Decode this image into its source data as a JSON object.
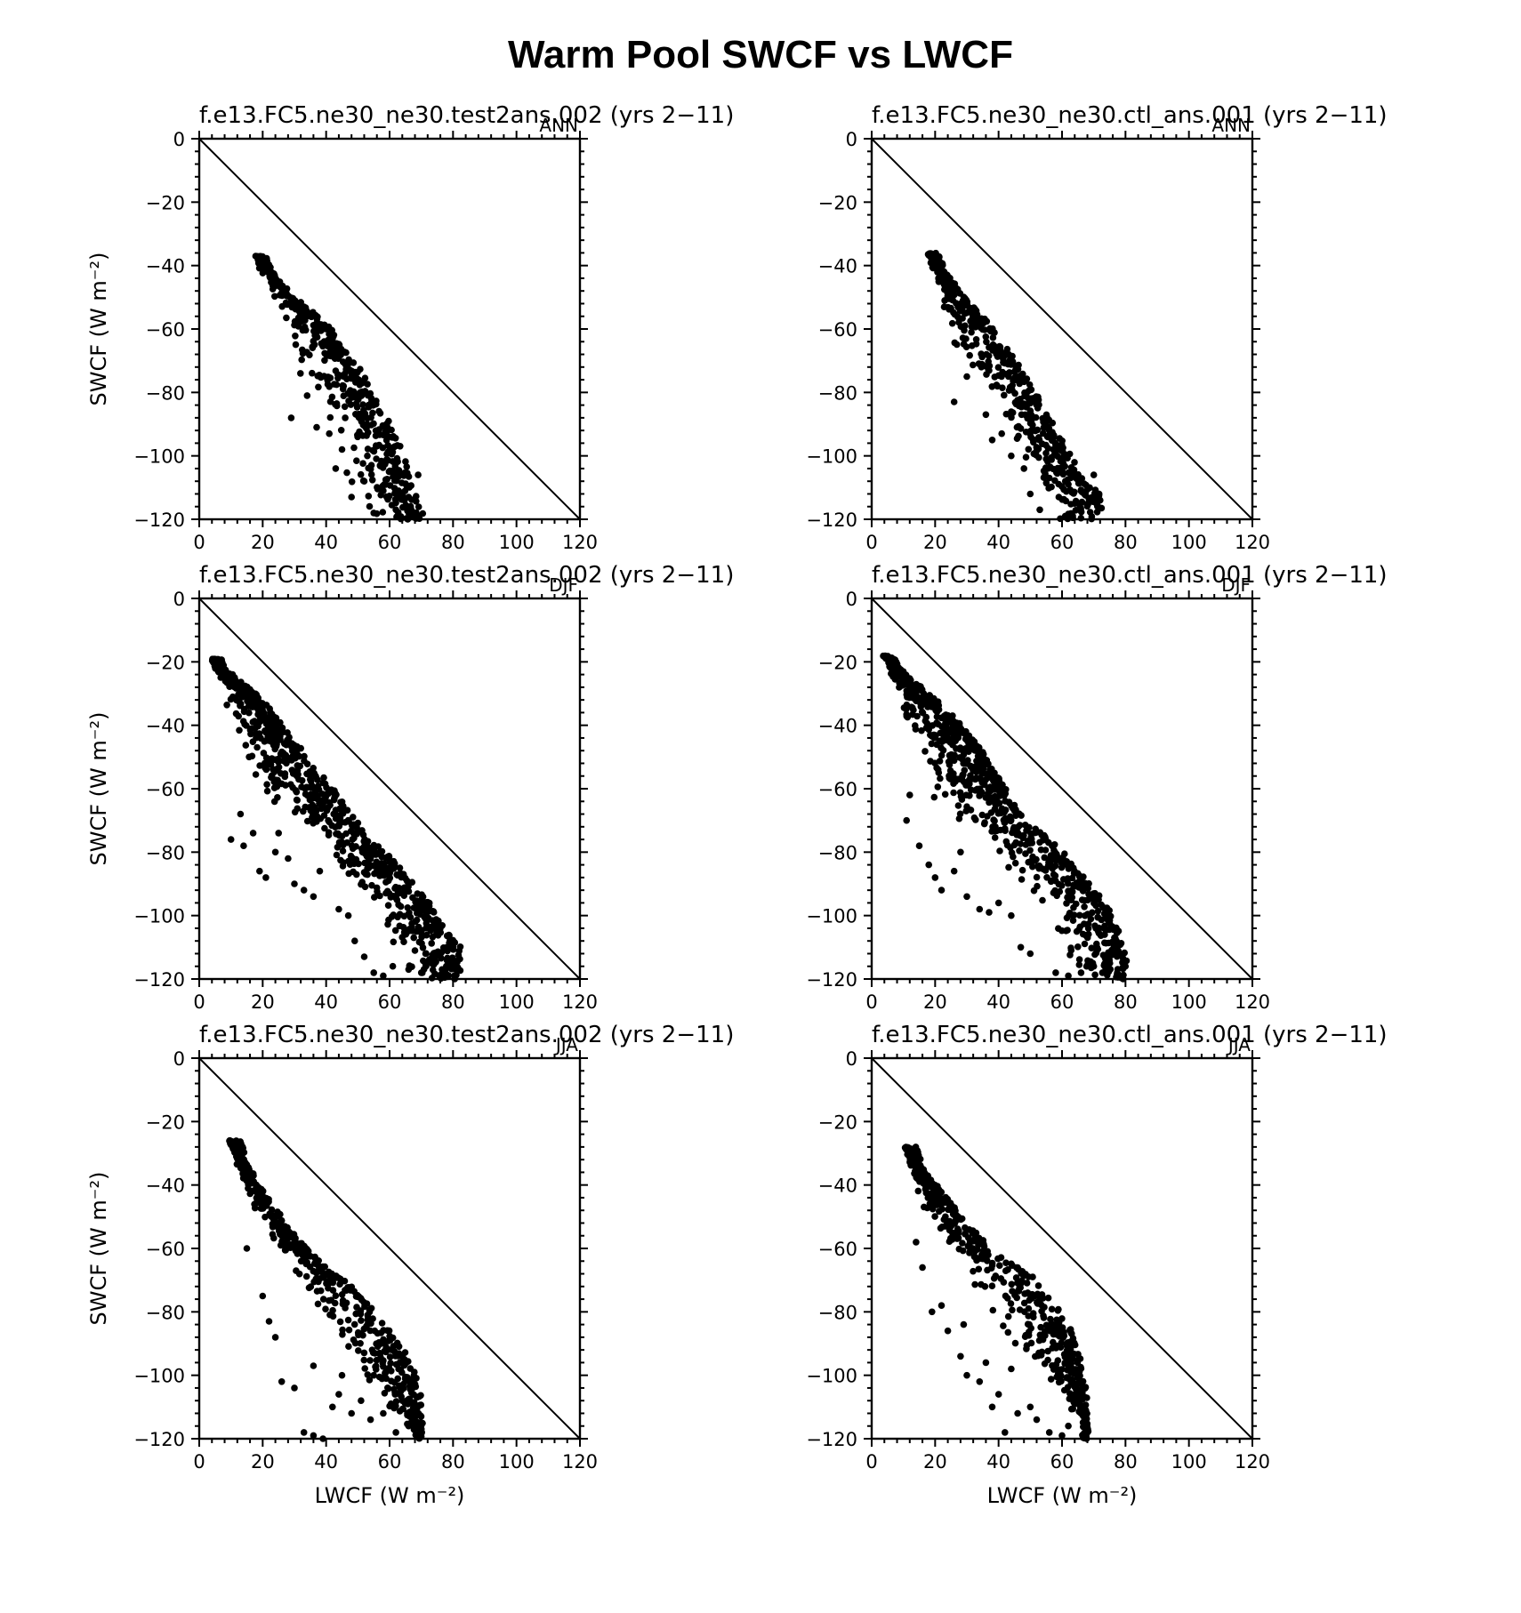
{
  "title": "Warm Pool SWCF vs LWCF",
  "chart_data": [
    {
      "type": "scatter",
      "title": "f.e13.FC5.ne30_ne30.test2ans.002 (yrs 2−11)",
      "season": "ANN",
      "xlabel": "",
      "ylabel": "SWCF (W m⁻²)",
      "xlim": [
        0,
        120
      ],
      "ylim": [
        -120,
        0
      ],
      "xticks": [
        "0",
        "20",
        "40",
        "60",
        "80",
        "100",
        "120"
      ],
      "yticks": [
        "0",
        "−20",
        "−40",
        "−60",
        "−80",
        "−100",
        "−120"
      ],
      "reference_line": "1:1 diagonal",
      "cloud": {
        "seed": 11,
        "tip": [
          18,
          -37
        ],
        "upper_edge": [
          [
            18,
            -37
          ],
          [
            30,
            -50
          ],
          [
            40,
            -58
          ],
          [
            50,
            -72
          ],
          [
            56,
            -82
          ],
          [
            60,
            -90
          ],
          [
            66,
            -104
          ],
          [
            70,
            -118
          ]
        ],
        "lower_edge": [
          [
            18,
            -37
          ],
          [
            22,
            -48
          ],
          [
            26,
            -60
          ],
          [
            30,
            -72
          ],
          [
            34,
            -85
          ],
          [
            40,
            -98
          ],
          [
            46,
            -110
          ],
          [
            52,
            -118
          ],
          [
            60,
            -120
          ]
        ],
        "n": 520,
        "outliers": [
          [
            29,
            -88
          ],
          [
            34,
            -81
          ],
          [
            37,
            -91
          ],
          [
            41,
            -93
          ],
          [
            43,
            -104
          ],
          [
            45,
            -98
          ],
          [
            48,
            -113
          ],
          [
            52,
            -108
          ],
          [
            55,
            -118
          ],
          [
            58,
            -111
          ],
          [
            62,
            -117
          ],
          [
            66,
            -113
          ],
          [
            67,
            -118
          ],
          [
            69,
            -106
          ],
          [
            53,
            -100
          ],
          [
            57,
            -103
          ],
          [
            46,
            -88
          ],
          [
            60,
            -98
          ]
        ]
      }
    },
    {
      "type": "scatter",
      "title": "f.e13.FC5.ne30_ne30.ctl_ans.001 (yrs 2−11)",
      "season": "ANN",
      "xlabel": "",
      "ylabel": "",
      "xlim": [
        0,
        120
      ],
      "ylim": [
        -120,
        0
      ],
      "xticks": [
        "0",
        "20",
        "40",
        "60",
        "80",
        "100",
        "120"
      ],
      "yticks": [
        "0",
        "−20",
        "−40",
        "−60",
        "−80",
        "−100",
        "−120"
      ],
      "reference_line": "1:1 diagonal",
      "cloud": {
        "seed": 23,
        "tip": [
          18,
          -36
        ],
        "upper_edge": [
          [
            18,
            -36
          ],
          [
            28,
            -48
          ],
          [
            40,
            -62
          ],
          [
            48,
            -74
          ],
          [
            54,
            -84
          ],
          [
            60,
            -96
          ],
          [
            66,
            -105
          ],
          [
            72,
            -112
          ]
        ],
        "lower_edge": [
          [
            18,
            -36
          ],
          [
            20,
            -48
          ],
          [
            23,
            -58
          ],
          [
            26,
            -66
          ],
          [
            32,
            -76
          ],
          [
            40,
            -88
          ],
          [
            46,
            -96
          ],
          [
            52,
            -108
          ],
          [
            58,
            -118
          ]
        ],
        "n": 520,
        "outliers": [
          [
            26,
            -83
          ],
          [
            30,
            -75
          ],
          [
            36,
            -87
          ],
          [
            38,
            -95
          ],
          [
            41,
            -93
          ],
          [
            44,
            -100
          ],
          [
            50,
            -112
          ],
          [
            53,
            -117
          ],
          [
            56,
            -107
          ],
          [
            59,
            -113
          ],
          [
            62,
            -109
          ],
          [
            64,
            -115
          ],
          [
            67,
            -112
          ],
          [
            70,
            -106
          ],
          [
            72,
            -114
          ],
          [
            55,
            -101
          ],
          [
            48,
            -104
          ],
          [
            61,
            -119
          ]
        ]
      }
    },
    {
      "type": "scatter",
      "title": "f.e13.FC5.ne30_ne30.test2ans.002 (yrs 2−11)",
      "season": "DJF",
      "xlabel": "",
      "ylabel": "SWCF (W m⁻²)",
      "xlim": [
        0,
        120
      ],
      "ylim": [
        -120,
        0
      ],
      "xticks": [
        "0",
        "20",
        "40",
        "60",
        "80",
        "100",
        "120"
      ],
      "yticks": [
        "0",
        "−20",
        "−40",
        "−60",
        "−80",
        "−100",
        "−120"
      ],
      "reference_line": "1:1 diagonal",
      "cloud": {
        "seed": 37,
        "tip": [
          4,
          -19
        ],
        "upper_edge": [
          [
            4,
            -19
          ],
          [
            20,
            -32
          ],
          [
            36,
            -52
          ],
          [
            50,
            -70
          ],
          [
            64,
            -86
          ],
          [
            74,
            -98
          ],
          [
            82,
            -110
          ]
        ],
        "lower_edge": [
          [
            4,
            -19
          ],
          [
            8,
            -35
          ],
          [
            12,
            -50
          ],
          [
            18,
            -62
          ],
          [
            26,
            -68
          ],
          [
            36,
            -76
          ],
          [
            46,
            -88
          ],
          [
            56,
            -104
          ],
          [
            62,
            -118
          ],
          [
            72,
            -120
          ]
        ],
        "n": 780,
        "outliers": [
          [
            10,
            -76
          ],
          [
            14,
            -78
          ],
          [
            17,
            -74
          ],
          [
            19,
            -86
          ],
          [
            21,
            -88
          ],
          [
            24,
            -80
          ],
          [
            28,
            -82
          ],
          [
            30,
            -90
          ],
          [
            33,
            -92
          ],
          [
            36,
            -94
          ],
          [
            38,
            -86
          ],
          [
            44,
            -98
          ],
          [
            47,
            -100
          ],
          [
            49,
            -108
          ],
          [
            52,
            -113
          ],
          [
            55,
            -118
          ],
          [
            58,
            -119
          ],
          [
            61,
            -116
          ],
          [
            66,
            -117
          ],
          [
            70,
            -118
          ],
          [
            76,
            -113
          ],
          [
            80,
            -116
          ],
          [
            13,
            -68
          ],
          [
            25,
            -74
          ]
        ]
      }
    },
    {
      "type": "scatter",
      "title": "f.e13.FC5.ne30_ne30.ctl_ans.001 (yrs 2−11)",
      "season": "DJF",
      "xlabel": "",
      "ylabel": "",
      "xlim": [
        0,
        120
      ],
      "ylim": [
        -120,
        0
      ],
      "xticks": [
        "0",
        "20",
        "40",
        "60",
        "80",
        "100",
        "120"
      ],
      "yticks": [
        "0",
        "−20",
        "−40",
        "−60",
        "−80",
        "−100",
        "−120"
      ],
      "reference_line": "1:1 diagonal",
      "cloud": {
        "seed": 51,
        "tip": [
          4,
          -18
        ],
        "upper_edge": [
          [
            4,
            -18
          ],
          [
            18,
            -30
          ],
          [
            32,
            -44
          ],
          [
            46,
            -66
          ],
          [
            60,
            -80
          ],
          [
            72,
            -94
          ],
          [
            80,
            -108
          ]
        ],
        "lower_edge": [
          [
            4,
            -18
          ],
          [
            8,
            -30
          ],
          [
            12,
            -46
          ],
          [
            16,
            -58
          ],
          [
            22,
            -66
          ],
          [
            32,
            -76
          ],
          [
            44,
            -88
          ],
          [
            54,
            -100
          ],
          [
            58,
            -110
          ],
          [
            62,
            -118
          ],
          [
            72,
            -120
          ]
        ],
        "n": 780,
        "outliers": [
          [
            11,
            -70
          ],
          [
            15,
            -78
          ],
          [
            18,
            -84
          ],
          [
            20,
            -88
          ],
          [
            22,
            -92
          ],
          [
            26,
            -86
          ],
          [
            30,
            -94
          ],
          [
            34,
            -98
          ],
          [
            37,
            -99
          ],
          [
            40,
            -96
          ],
          [
            44,
            -100
          ],
          [
            47,
            -110
          ],
          [
            50,
            -112
          ],
          [
            58,
            -118
          ],
          [
            62,
            -119
          ],
          [
            66,
            -118
          ],
          [
            70,
            -116
          ],
          [
            74,
            -113
          ],
          [
            78,
            -112
          ],
          [
            80,
            -116
          ],
          [
            12,
            -62
          ],
          [
            28,
            -80
          ]
        ]
      }
    },
    {
      "type": "scatter",
      "title": "f.e13.FC5.ne30_ne30.test2ans.002 (yrs 2−11)",
      "season": "JJA",
      "xlabel": "LWCF (W m⁻²)",
      "ylabel": "SWCF (W m⁻²)",
      "xlim": [
        0,
        120
      ],
      "ylim": [
        -120,
        0
      ],
      "xticks": [
        "0",
        "20",
        "40",
        "60",
        "80",
        "100",
        "120"
      ],
      "yticks": [
        "0",
        "−20",
        "−40",
        "−60",
        "−80",
        "−100",
        "−120"
      ],
      "reference_line": "1:1 diagonal",
      "cloud": {
        "seed": 67,
        "tip": [
          10,
          -26
        ],
        "upper_edge": [
          [
            10,
            -26
          ],
          [
            20,
            -42
          ],
          [
            30,
            -56
          ],
          [
            40,
            -66
          ],
          [
            50,
            -74
          ],
          [
            58,
            -82
          ],
          [
            65,
            -92
          ],
          [
            70,
            -102
          ]
        ],
        "lower_edge": [
          [
            10,
            -26
          ],
          [
            12,
            -34
          ],
          [
            16,
            -46
          ],
          [
            22,
            -56
          ],
          [
            28,
            -64
          ],
          [
            34,
            -76
          ],
          [
            40,
            -88
          ],
          [
            48,
            -98
          ],
          [
            54,
            -106
          ],
          [
            60,
            -112
          ],
          [
            68,
            -118
          ]
        ],
        "n": 560,
        "outliers": [
          [
            15,
            -60
          ],
          [
            20,
            -75
          ],
          [
            22,
            -83
          ],
          [
            24,
            -88
          ],
          [
            26,
            -102
          ],
          [
            30,
            -104
          ],
          [
            33,
            -118
          ],
          [
            36,
            -119
          ],
          [
            39,
            -120
          ],
          [
            42,
            -110
          ],
          [
            44,
            -106
          ],
          [
            48,
            -112
          ],
          [
            51,
            -108
          ],
          [
            54,
            -114
          ],
          [
            58,
            -112
          ],
          [
            62,
            -118
          ],
          [
            66,
            -116
          ],
          [
            70,
            -117
          ],
          [
            36,
            -97
          ],
          [
            45,
            -100
          ],
          [
            55,
            -100
          ],
          [
            64,
            -108
          ]
        ]
      }
    },
    {
      "type": "scatter",
      "title": "f.e13.FC5.ne30_ne30.ctl_ans.001 (yrs 2−11)",
      "season": "JJA",
      "xlabel": "LWCF (W m⁻²)",
      "ylabel": "",
      "xlim": [
        0,
        120
      ],
      "ylim": [
        -120,
        0
      ],
      "xticks": [
        "0",
        "20",
        "40",
        "60",
        "80",
        "100",
        "120"
      ],
      "yticks": [
        "0",
        "−20",
        "−40",
        "−60",
        "−80",
        "−100",
        "−120"
      ],
      "reference_line": "1:1 diagonal",
      "cloud": {
        "seed": 83,
        "tip": [
          11,
          -28
        ],
        "upper_edge": [
          [
            11,
            -28
          ],
          [
            20,
            -40
          ],
          [
            30,
            -52
          ],
          [
            40,
            -62
          ],
          [
            50,
            -68
          ],
          [
            58,
            -78
          ],
          [
            64,
            -88
          ],
          [
            68,
            -104
          ]
        ],
        "lower_edge": [
          [
            11,
            -28
          ],
          [
            13,
            -38
          ],
          [
            16,
            -48
          ],
          [
            20,
            -56
          ],
          [
            26,
            -64
          ],
          [
            32,
            -74
          ],
          [
            40,
            -86
          ],
          [
            48,
            -96
          ],
          [
            56,
            -104
          ],
          [
            62,
            -110
          ],
          [
            66,
            -116
          ]
        ],
        "n": 560,
        "outliers": [
          [
            14,
            -58
          ],
          [
            16,
            -66
          ],
          [
            19,
            -80
          ],
          [
            22,
            -78
          ],
          [
            24,
            -86
          ],
          [
            28,
            -94
          ],
          [
            30,
            -100
          ],
          [
            34,
            -102
          ],
          [
            36,
            -96
          ],
          [
            38,
            -110
          ],
          [
            40,
            -106
          ],
          [
            42,
            -118
          ],
          [
            46,
            -112
          ],
          [
            50,
            -110
          ],
          [
            52,
            -114
          ],
          [
            56,
            -118
          ],
          [
            60,
            -119
          ],
          [
            62,
            -116
          ],
          [
            66,
            -112
          ],
          [
            68,
            -118
          ],
          [
            29,
            -84
          ],
          [
            44,
            -98
          ]
        ]
      }
    }
  ]
}
